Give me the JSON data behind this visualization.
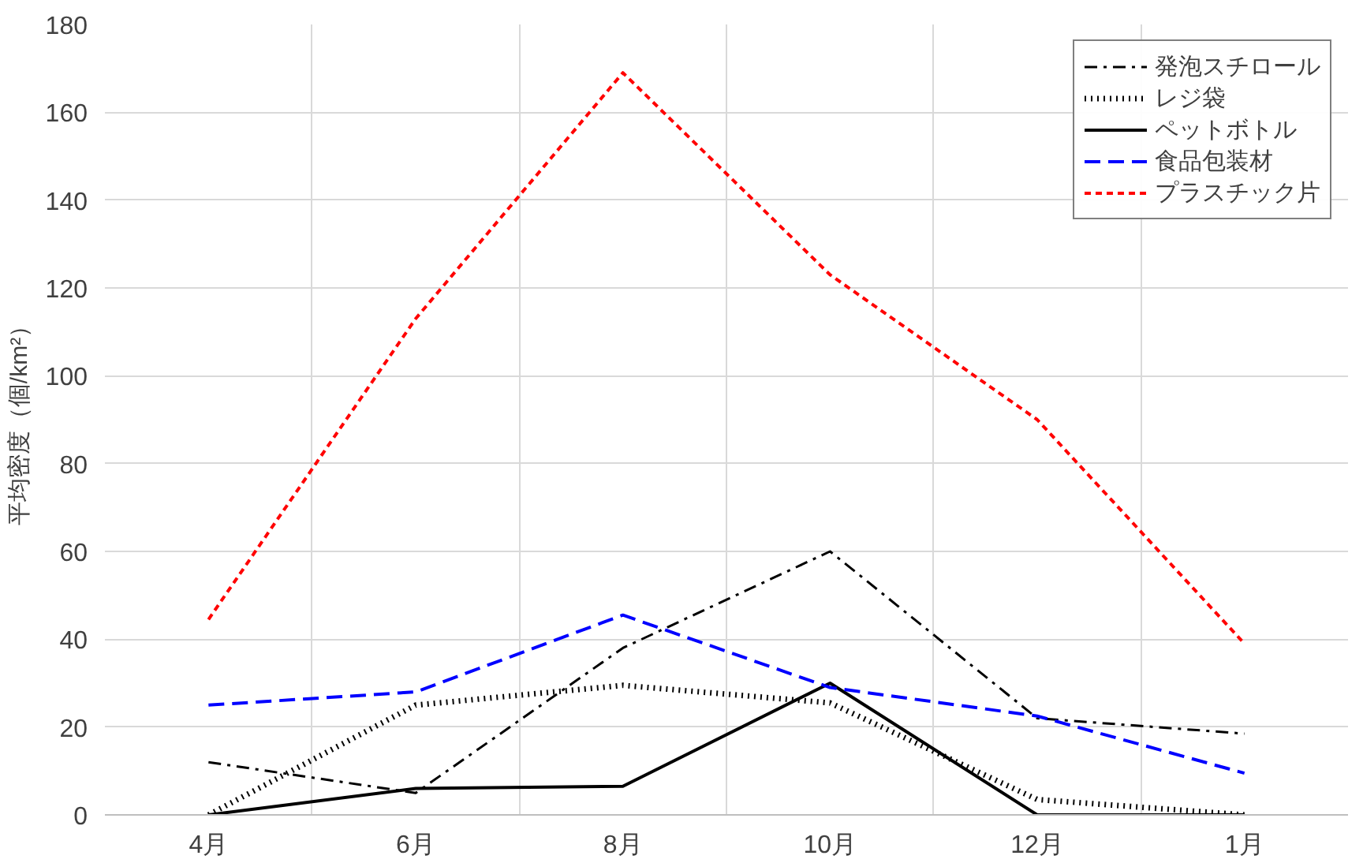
{
  "chart_data": {
    "type": "line",
    "ylabel": "平均密度（個/km²）",
    "categories": [
      "4月",
      "6月",
      "8月",
      "10月",
      "12月",
      "1月"
    ],
    "ylim": [
      0,
      180
    ],
    "yticks": [
      0,
      20,
      40,
      60,
      80,
      100,
      120,
      140,
      160,
      180
    ],
    "grid": true,
    "legend": "top right",
    "marker": "none",
    "series": [
      {
        "name": "発泡スチロール",
        "color": "#000000",
        "line_style": "dashdot",
        "values": [
          12,
          5,
          38,
          60,
          22,
          18.5
        ]
      },
      {
        "name": "レジ袋",
        "color": "#000000",
        "line_style": "dotted",
        "values": [
          0,
          25,
          29.5,
          25.5,
          3.5,
          0
        ]
      },
      {
        "name": "ペットボトル",
        "color": "#000000",
        "line_style": "solid",
        "values": [
          0,
          6,
          6.5,
          30,
          0,
          0
        ]
      },
      {
        "name": "食品包装材",
        "color": "#0000ff",
        "line_style": "dashed",
        "values": [
          25,
          28,
          45.5,
          29,
          22.5,
          9.5
        ]
      },
      {
        "name": "プラスチック片",
        "color": "#ff0000",
        "line_style": "dashed",
        "values": [
          44.5,
          113,
          169,
          123,
          90,
          39
        ]
      }
    ]
  }
}
